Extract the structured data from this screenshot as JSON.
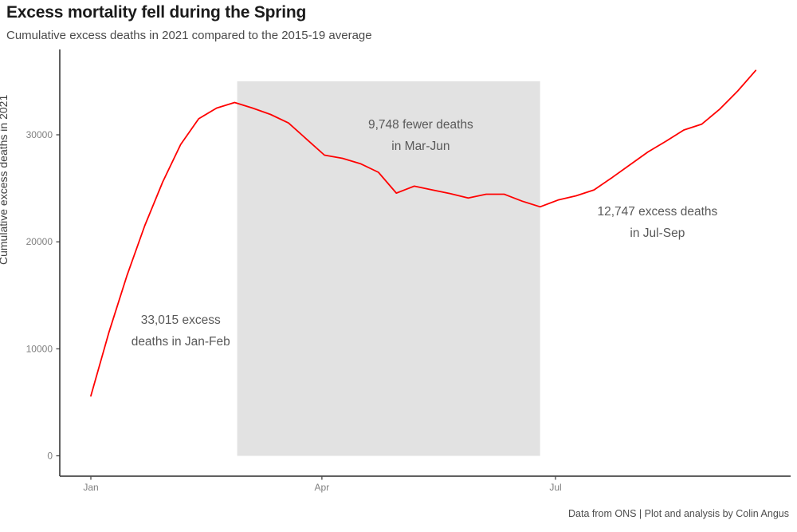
{
  "title": "Excess mortality fell during the Spring",
  "subtitle": "Cumulative excess deaths in 2021 compared to the 2015-19 average",
  "caption": "Data from ONS | Plot and analysis by Colin Angus",
  "y_axis_title": "Cumulative excess deaths in 2021",
  "colors": {
    "line": "#ff0000",
    "highlight_region": "#e2e2e2",
    "axis": "#3a3a3a",
    "tick_label": "#808080",
    "annotation_text": "#595959"
  },
  "chart_data": {
    "type": "line",
    "title": "Excess mortality fell during the Spring",
    "subtitle": "Cumulative excess deaths in 2021 compared to the 2015-19 average",
    "xlabel": "",
    "ylabel": "Cumulative excess deaths in 2021",
    "x_unit": "day of 2021 (0 = Jan 1), weekly data",
    "xlim_days": [
      -12,
      273
    ],
    "ylim": [
      0,
      38000
    ],
    "grid": "off",
    "legend": "none",
    "xticks": [
      {
        "label": "Jan",
        "day": 0
      },
      {
        "label": "Apr",
        "day": 90
      },
      {
        "label": "Jul",
        "day": 181
      }
    ],
    "yticks": [
      {
        "label": "0",
        "value": 0
      },
      {
        "label": "10000",
        "value": 10000
      },
      {
        "label": "20000",
        "value": 20000
      },
      {
        "label": "30000",
        "value": 30000
      }
    ],
    "highlight_region": {
      "label": "Mar-Jun",
      "day_start": 57,
      "day_end": 175,
      "value_min": 0,
      "value_max": 35000,
      "color": "#e2e2e2"
    },
    "series": [
      {
        "name": "Cumulative excess deaths in 2021 vs 2015-19 average",
        "color": "#ff0000",
        "points": [
          {
            "date": "Jan 1",
            "day": 0,
            "value": 5600
          },
          {
            "date": "Jan 8",
            "day": 7,
            "value": 11500
          },
          {
            "date": "Jan 15",
            "day": 14,
            "value": 16800
          },
          {
            "date": "Jan 22",
            "day": 21,
            "value": 21500
          },
          {
            "date": "Jan 29",
            "day": 28,
            "value": 25600
          },
          {
            "date": "Feb 5",
            "day": 35,
            "value": 29100
          },
          {
            "date": "Feb 12",
            "day": 42,
            "value": 31500
          },
          {
            "date": "Feb 19",
            "day": 49,
            "value": 32500
          },
          {
            "date": "Feb 26",
            "day": 56,
            "value": 33015
          },
          {
            "date": "Mar 5",
            "day": 63,
            "value": 32500
          },
          {
            "date": "Mar 12",
            "day": 70,
            "value": 31900
          },
          {
            "date": "Mar 19",
            "day": 77,
            "value": 31100
          },
          {
            "date": "Mar 26",
            "day": 84,
            "value": 29600
          },
          {
            "date": "Apr 2",
            "day": 91,
            "value": 28100
          },
          {
            "date": "Apr 9",
            "day": 98,
            "value": 27800
          },
          {
            "date": "Apr 16",
            "day": 105,
            "value": 27300
          },
          {
            "date": "Apr 23",
            "day": 112,
            "value": 26500
          },
          {
            "date": "Apr 30",
            "day": 119,
            "value": 24550
          },
          {
            "date": "May 7",
            "day": 126,
            "value": 25200
          },
          {
            "date": "May 14",
            "day": 133,
            "value": 24850
          },
          {
            "date": "May 21",
            "day": 140,
            "value": 24500
          },
          {
            "date": "May 28",
            "day": 147,
            "value": 24100
          },
          {
            "date": "Jun 4",
            "day": 154,
            "value": 24450
          },
          {
            "date": "Jun 11",
            "day": 161,
            "value": 24450
          },
          {
            "date": "Jun 18",
            "day": 168,
            "value": 23800
          },
          {
            "date": "Jun 25",
            "day": 175,
            "value": 23267
          },
          {
            "date": "Jul 2",
            "day": 182,
            "value": 23900
          },
          {
            "date": "Jul 9",
            "day": 189,
            "value": 24300
          },
          {
            "date": "Jul 16",
            "day": 196,
            "value": 24850
          },
          {
            "date": "Jul 23",
            "day": 203,
            "value": 26000
          },
          {
            "date": "Jul 30",
            "day": 210,
            "value": 27200
          },
          {
            "date": "Aug 6",
            "day": 217,
            "value": 28400
          },
          {
            "date": "Aug 13",
            "day": 224,
            "value": 29400
          },
          {
            "date": "Aug 20",
            "day": 231,
            "value": 30450
          },
          {
            "date": "Aug 27",
            "day": 238,
            "value": 31000
          },
          {
            "date": "Sep 3",
            "day": 245,
            "value": 32400
          },
          {
            "date": "Sep 10",
            "day": 252,
            "value": 34100
          },
          {
            "date": "Sep 17",
            "day": 259,
            "value": 36014
          }
        ]
      }
    ],
    "annotations": [
      {
        "id": "jan-feb",
        "lines": [
          "33,015 excess",
          "deaths in Jan-Feb"
        ],
        "center_day": 35,
        "center_value": 11700
      },
      {
        "id": "mar-jun",
        "lines": [
          "9,748 fewer deaths",
          "in Mar-Jun"
        ],
        "center_day": 128.5,
        "center_value": 29900
      },
      {
        "id": "jul-sep",
        "lines": [
          "12,747 excess deaths",
          "in Jul-Sep"
        ],
        "center_day": 220.7,
        "center_value": 21800
      }
    ]
  }
}
